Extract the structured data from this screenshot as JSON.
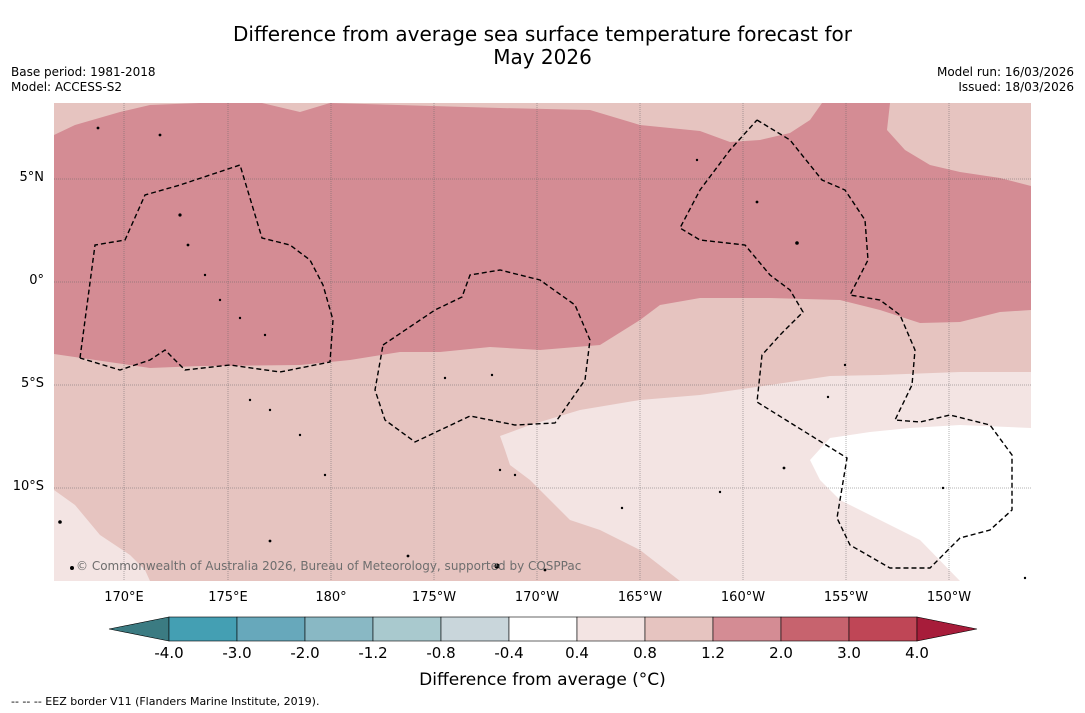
{
  "title": {
    "line1": "Difference from average sea surface temperature forecast for",
    "line2": "May 2026"
  },
  "meta_left": {
    "base_period": "Base period: 1981-2018",
    "model": "Model: ACCESS-S2"
  },
  "meta_right": {
    "model_run": "Model run: 16/03/2026",
    "issued": "Issued: 18/03/2026"
  },
  "copyright": "© Commonwealth of Australia 2026, Bureau of Meteorology, supported by COSPPac",
  "lon_labels": [
    "170°E",
    "175°E",
    "180°",
    "175°W",
    "170°W",
    "165°W",
    "160°W",
    "155°W",
    "150°W"
  ],
  "lat_labels": [
    "5°N",
    "0°",
    "5°S",
    "10°S"
  ],
  "legend": {
    "ticks": [
      "-4.0",
      "-3.0",
      "-2.0",
      "-1.2",
      "-0.8",
      "-0.4",
      "0.4",
      "0.8",
      "1.2",
      "2.0",
      "3.0",
      "4.0"
    ],
    "label": "Difference from average (°C)",
    "colors": {
      "under": "#3b7b82",
      "bins": [
        "#449fb3",
        "#67a8bb",
        "#89b8c4",
        "#a9c9ce",
        "#c9d6db",
        "#ffffff",
        "#f3e4e3",
        "#e6c4c0",
        "#d48c94",
        "#c7636e",
        "#bf4656"
      ],
      "over": "#a71c3a"
    }
  },
  "eez_note": "--  --  -- EEZ border V11 (Flanders Marine Institute, 2019)."
}
